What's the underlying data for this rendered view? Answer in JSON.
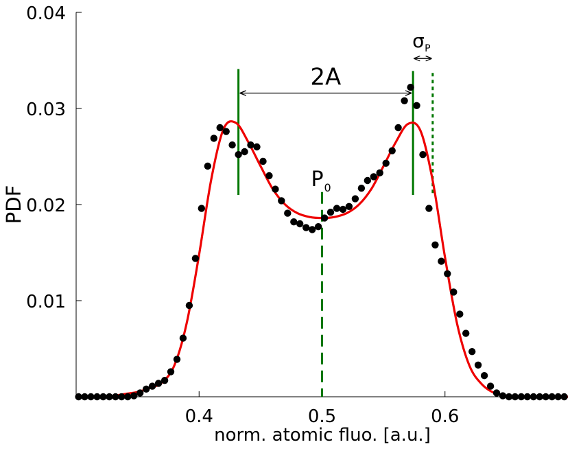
{
  "chart_data": {
    "type": "scatter",
    "title": "",
    "xlabel": "norm. atomic fluo. [a.u.]",
    "ylabel": "PDF",
    "xlim": [
      0.3,
      0.7
    ],
    "ylim": [
      0.0,
      0.04
    ],
    "x_ticks": [
      0.4,
      0.5,
      0.6
    ],
    "x_tick_labels": [
      "0.4",
      "0.5",
      "0.6"
    ],
    "y_ticks": [
      0.01,
      0.02,
      0.03,
      0.04
    ],
    "y_tick_labels": [
      "0.01",
      "0.02",
      "0.03",
      "0.04"
    ],
    "grid": false,
    "legend": "none",
    "colors": {
      "data": "#000000",
      "fit": "#ee0000",
      "markers": "#007700"
    },
    "series": [
      {
        "kind": "points",
        "x": [
          0.302,
          0.307,
          0.312,
          0.317,
          0.322,
          0.327,
          0.332,
          0.337,
          0.342,
          0.347,
          0.352,
          0.357,
          0.362,
          0.367,
          0.372,
          0.377,
          0.382,
          0.387,
          0.392,
          0.397,
          0.402,
          0.407,
          0.412,
          0.417,
          0.422,
          0.427,
          0.432,
          0.437,
          0.442,
          0.447,
          0.452,
          0.457,
          0.462,
          0.467,
          0.472,
          0.477,
          0.482,
          0.487,
          0.492,
          0.497,
          0.502,
          0.507,
          0.512,
          0.517,
          0.522,
          0.527,
          0.532,
          0.537,
          0.542,
          0.547,
          0.552,
          0.557,
          0.562,
          0.567,
          0.572,
          0.577,
          0.582,
          0.587,
          0.592,
          0.597,
          0.602,
          0.607,
          0.612,
          0.617,
          0.622,
          0.627,
          0.632,
          0.637,
          0.642,
          0.647,
          0.652,
          0.657,
          0.662,
          0.667,
          0.672,
          0.677,
          0.682,
          0.687,
          0.692,
          0.697
        ],
        "y": [
          0,
          0,
          0,
          0,
          0,
          0,
          0,
          0,
          0,
          0.0001,
          0.0004,
          0.0008,
          0.0011,
          0.0014,
          0.0017,
          0.0026,
          0.0039,
          0.0061,
          0.0095,
          0.0144,
          0.0196,
          0.024,
          0.0269,
          0.028,
          0.0276,
          0.0262,
          0.0252,
          0.0255,
          0.0262,
          0.026,
          0.0245,
          0.023,
          0.0216,
          0.0204,
          0.0191,
          0.0182,
          0.018,
          0.0176,
          0.0174,
          0.0177,
          0.0186,
          0.0192,
          0.0196,
          0.0195,
          0.0198,
          0.0206,
          0.0217,
          0.0225,
          0.0229,
          0.0233,
          0.0243,
          0.0256,
          0.028,
          0.0308,
          0.0322,
          0.0303,
          0.0252,
          0.0196,
          0.0158,
          0.0141,
          0.0128,
          0.0109,
          0.0086,
          0.0066,
          0.0047,
          0.0033,
          0.0022,
          0.0011,
          0.0004,
          0.0001,
          0,
          0,
          0,
          0,
          0,
          0,
          0,
          0,
          0,
          0
        ]
      },
      {
        "kind": "fit-curve",
        "x": [
          0.3,
          0.31,
          0.32,
          0.33,
          0.34,
          0.35,
          0.36,
          0.37,
          0.38,
          0.39,
          0.4,
          0.41,
          0.42,
          0.43,
          0.44,
          0.45,
          0.46,
          0.47,
          0.48,
          0.49,
          0.5,
          0.51,
          0.52,
          0.53,
          0.54,
          0.55,
          0.56,
          0.57,
          0.58,
          0.59,
          0.6,
          0.61,
          0.62,
          0.63,
          0.64,
          0.65,
          0.66,
          0.67,
          0.68,
          0.69,
          0.7
        ],
        "y": [
          0,
          0,
          0,
          0.0001,
          0.0003,
          0.0005,
          0.0009,
          0.0015,
          0.0033,
          0.0077,
          0.0148,
          0.0227,
          0.0279,
          0.0285,
          0.0265,
          0.024,
          0.0216,
          0.02,
          0.0191,
          0.0187,
          0.0186,
          0.0187,
          0.0191,
          0.02,
          0.0216,
          0.024,
          0.0265,
          0.0284,
          0.0277,
          0.0225,
          0.0145,
          0.0075,
          0.0032,
          0.0013,
          0.0004,
          0.0001,
          0,
          0,
          0,
          0,
          0
        ]
      }
    ],
    "annotations": {
      "two_a": {
        "label": "2A",
        "from_x": 0.432,
        "to_x": 0.574,
        "y": 0.0316
      },
      "p0": {
        "label": "P",
        "subscript": "0",
        "x": 0.5,
        "line_y": [
          0,
          0.0213
        ]
      },
      "sigma_p": {
        "label": "σ",
        "subscript": "P",
        "from_x": 0.574,
        "to_x": 0.59,
        "y": 0.0352
      },
      "peak_lines": [
        {
          "x": 0.432,
          "y": [
            0.021,
            0.0341
          ]
        },
        {
          "x": 0.574,
          "y": [
            0.021,
            0.0339
          ]
        }
      ],
      "width_line": {
        "x": 0.59,
        "y": [
          0.021,
          0.0337
        ]
      }
    }
  }
}
